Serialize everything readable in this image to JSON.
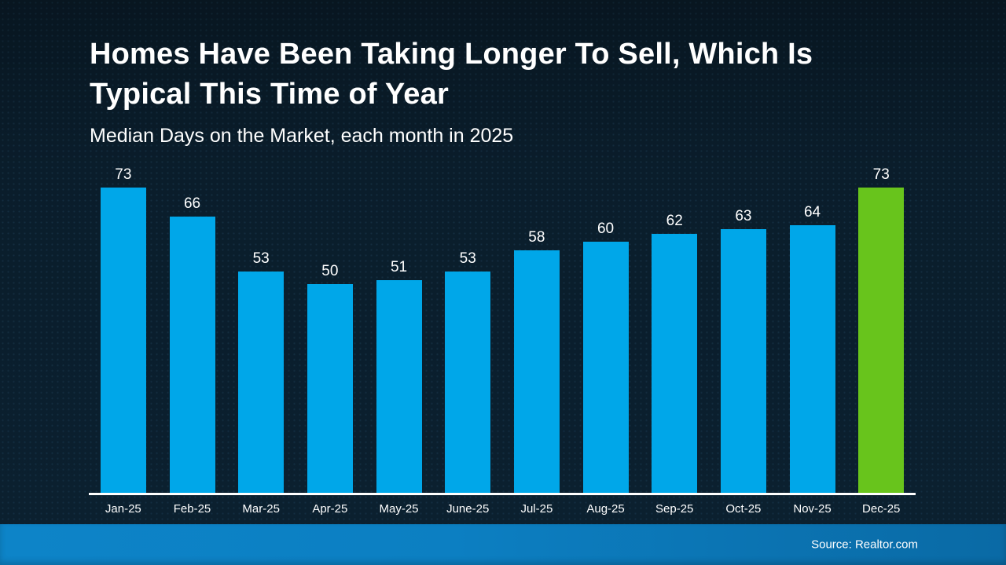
{
  "slide": {
    "title_line1": "Homes Have Been Taking Longer To Sell, Which Is",
    "title_line2": "Typical This Time of Year",
    "subtitle": "Median Days on the Market, each month in 2025",
    "source": "Source: Realtor.com"
  },
  "colors": {
    "background": "#0a1d2b",
    "bar_default": "#00a7e9",
    "bar_highlight": "#68c41c",
    "axis_line": "#ffffff",
    "footer_gradient_left": "#0d84c8",
    "footer_gradient_right": "#0a6aa5",
    "text": "#ffffff"
  },
  "chart_data": {
    "type": "bar",
    "title": "Homes Have Been Taking Longer To Sell, Which Is Typical This Time of Year",
    "subtitle": "Median Days on the Market, each month in 2025",
    "categories": [
      "Jan-25",
      "Feb-25",
      "Mar-25",
      "Apr-25",
      "May-25",
      "June-25",
      "Jul-25",
      "Aug-25",
      "Sep-25",
      "Oct-25",
      "Nov-25",
      "Dec-25"
    ],
    "values": [
      73,
      66,
      53,
      50,
      51,
      53,
      58,
      60,
      62,
      63,
      64,
      73
    ],
    "highlight_index": 11,
    "data_labels": true,
    "xlabel": "",
    "ylabel": "",
    "ylim": [
      0,
      73
    ],
    "grid": false,
    "legend": false
  }
}
